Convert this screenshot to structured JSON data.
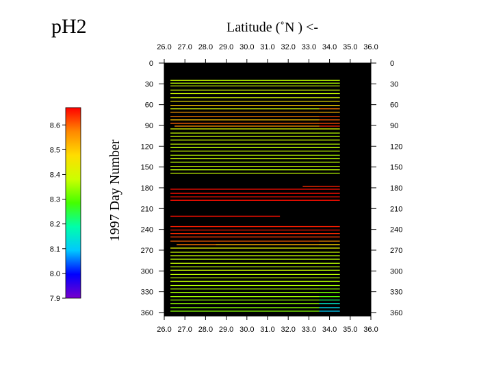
{
  "chart_data": {
    "type": "heatmap",
    "title": "pH2",
    "xlabel": "Latitude  (˚N )  <-",
    "ylabel": "1997   Day  Number",
    "x_ticks": [
      "26.0",
      "27.0",
      "28.0",
      "29.0",
      "30.0",
      "31.0",
      "32.0",
      "33.0",
      "34.0",
      "35.0",
      "36.0"
    ],
    "y_ticks": [
      "0",
      "30",
      "60",
      "90",
      "120",
      "150",
      "180",
      "210",
      "240",
      "270",
      "300",
      "330",
      "360"
    ],
    "xlim": [
      26.0,
      36.0
    ],
    "ylim": [
      0,
      365
    ],
    "y_reversed": true,
    "background": "#000000",
    "colorbar": {
      "ticks": [
        "8.6",
        "8.5",
        "8.4",
        "8.3",
        "8.2",
        "8.1",
        "8.0",
        "7.9"
      ],
      "min": 7.9,
      "max": 8.67,
      "colors": [
        "#7700cc",
        "#0000ff",
        "#00c8ff",
        "#00ffaa",
        "#44ff00",
        "#ccff00",
        "#ffdd00",
        "#ff8800",
        "#ff0000"
      ]
    },
    "tracks": [
      {
        "day": 25,
        "segments": [
          [
            26.3,
            28.5,
            8.38
          ],
          [
            28.5,
            33.5,
            8.37
          ],
          [
            33.5,
            34.5,
            8.37
          ]
        ]
      },
      {
        "day": 29,
        "segments": [
          [
            26.3,
            28.5,
            8.37
          ],
          [
            28.5,
            33.5,
            8.37
          ],
          [
            33.5,
            34.5,
            8.36
          ]
        ]
      },
      {
        "day": 33,
        "segments": [
          [
            26.3,
            28.5,
            8.38
          ],
          [
            28.5,
            33.5,
            8.38
          ],
          [
            33.5,
            34.5,
            8.37
          ]
        ]
      },
      {
        "day": 39,
        "segments": [
          [
            26.3,
            28.5,
            8.39
          ],
          [
            28.5,
            33.5,
            8.39
          ],
          [
            33.5,
            34.5,
            8.38
          ]
        ]
      },
      {
        "day": 44,
        "segments": [
          [
            26.3,
            28.5,
            8.39
          ],
          [
            28.5,
            33.5,
            8.39
          ],
          [
            33.5,
            34.5,
            8.38
          ]
        ]
      },
      {
        "day": 50,
        "segments": [
          [
            26.3,
            28.5,
            8.4
          ],
          [
            28.5,
            33.5,
            8.4
          ],
          [
            33.5,
            34.5,
            8.4
          ]
        ]
      },
      {
        "day": 55,
        "segments": [
          [
            26.3,
            28.5,
            8.45
          ],
          [
            28.5,
            33.5,
            8.46
          ],
          [
            33.5,
            34.5,
            8.45
          ]
        ]
      },
      {
        "day": 61,
        "segments": [
          [
            26.3,
            28.5,
            8.5
          ],
          [
            28.5,
            33.5,
            8.5
          ],
          [
            33.5,
            34.5,
            8.48
          ]
        ]
      },
      {
        "day": 66,
        "segments": [
          [
            26.3,
            28.5,
            8.4
          ],
          [
            28.5,
            33.5,
            8.4
          ],
          [
            33.5,
            34.5,
            8.58
          ]
        ]
      },
      {
        "day": 71,
        "segments": [
          [
            26.3,
            28.5,
            8.55
          ],
          [
            28.5,
            33.5,
            8.55
          ],
          [
            33.5,
            34.5,
            8.52
          ]
        ]
      },
      {
        "day": 77,
        "segments": [
          [
            26.3,
            28.5,
            8.58
          ],
          [
            28.5,
            33.5,
            8.58
          ],
          [
            33.5,
            34.5,
            8.62
          ]
        ]
      },
      {
        "day": 82,
        "segments": [
          [
            26.3,
            28.5,
            8.5
          ],
          [
            28.5,
            33.5,
            8.5
          ],
          [
            33.5,
            34.5,
            8.6
          ]
        ]
      },
      {
        "day": 87,
        "segments": [
          [
            26.3,
            28.5,
            8.6
          ],
          [
            28.5,
            33.5,
            8.6
          ],
          [
            33.5,
            34.5,
            8.62
          ]
        ]
      },
      {
        "day": 91,
        "segments": [
          [
            26.5,
            28.5,
            8.55
          ],
          [
            28.5,
            33.5,
            8.55
          ],
          [
            33.5,
            34.5,
            8.64
          ]
        ]
      },
      {
        "day": 95,
        "segments": [
          [
            26.3,
            28.5,
            8.4
          ],
          [
            28.5,
            33.5,
            8.4
          ],
          [
            33.5,
            34.5,
            8.4
          ]
        ]
      },
      {
        "day": 101,
        "segments": [
          [
            26.3,
            28.5,
            8.38
          ],
          [
            28.5,
            33.5,
            8.38
          ],
          [
            33.5,
            34.5,
            8.37
          ]
        ]
      },
      {
        "day": 106,
        "segments": [
          [
            26.3,
            28.5,
            8.38
          ],
          [
            28.5,
            33.5,
            8.38
          ],
          [
            33.5,
            34.5,
            8.37
          ]
        ]
      },
      {
        "day": 111,
        "segments": [
          [
            26.3,
            28.5,
            8.38
          ],
          [
            28.5,
            33.5,
            8.38
          ],
          [
            33.5,
            34.5,
            8.38
          ]
        ]
      },
      {
        "day": 117,
        "segments": [
          [
            26.3,
            28.5,
            8.38
          ],
          [
            28.5,
            33.5,
            8.38
          ],
          [
            33.5,
            34.5,
            8.37
          ]
        ]
      },
      {
        "day": 122,
        "segments": [
          [
            26.3,
            28.5,
            8.37
          ],
          [
            28.5,
            33.5,
            8.37
          ],
          [
            33.5,
            34.5,
            8.37
          ]
        ]
      },
      {
        "day": 127,
        "segments": [
          [
            26.3,
            28.5,
            8.38
          ],
          [
            28.5,
            33.5,
            8.38
          ],
          [
            33.5,
            34.5,
            8.37
          ]
        ]
      },
      {
        "day": 133,
        "segments": [
          [
            26.3,
            28.5,
            8.37
          ],
          [
            28.5,
            33.5,
            8.37
          ],
          [
            33.5,
            34.5,
            8.36
          ]
        ]
      },
      {
        "day": 138,
        "segments": [
          [
            26.3,
            28.5,
            8.38
          ],
          [
            28.5,
            33.5,
            8.38
          ],
          [
            33.5,
            34.5,
            8.37
          ]
        ]
      },
      {
        "day": 143,
        "segments": [
          [
            26.3,
            28.5,
            8.37
          ],
          [
            28.5,
            33.5,
            8.37
          ],
          [
            33.5,
            34.5,
            8.37
          ]
        ]
      },
      {
        "day": 149,
        "segments": [
          [
            26.3,
            28.5,
            8.38
          ],
          [
            28.5,
            33.5,
            8.38
          ],
          [
            33.5,
            34.5,
            8.37
          ]
        ]
      },
      {
        "day": 154,
        "segments": [
          [
            26.3,
            28.5,
            8.37
          ],
          [
            28.5,
            33.5,
            8.37
          ],
          [
            33.5,
            34.5,
            8.37
          ]
        ]
      },
      {
        "day": 159,
        "segments": [
          [
            26.3,
            28.5,
            8.38
          ],
          [
            28.5,
            33.5,
            8.38
          ],
          [
            33.5,
            34.5,
            8.37
          ]
        ]
      },
      {
        "day": 178,
        "segments": [
          [
            32.7,
            33.5,
            8.64
          ],
          [
            33.5,
            34.5,
            8.65
          ]
        ]
      },
      {
        "day": 182,
        "segments": [
          [
            26.3,
            28.5,
            8.66
          ],
          [
            28.5,
            33.5,
            8.66
          ],
          [
            33.5,
            34.5,
            8.66
          ]
        ]
      },
      {
        "day": 188,
        "segments": [
          [
            26.3,
            28.5,
            8.66
          ],
          [
            28.5,
            33.5,
            8.66
          ],
          [
            33.5,
            34.5,
            8.66
          ]
        ]
      },
      {
        "day": 193,
        "segments": [
          [
            26.3,
            28.5,
            8.66
          ],
          [
            28.5,
            33.5,
            8.66
          ],
          [
            33.5,
            34.5,
            8.66
          ]
        ]
      },
      {
        "day": 198,
        "segments": [
          [
            26.3,
            28.5,
            8.66
          ],
          [
            28.5,
            33.5,
            8.66
          ],
          [
            33.5,
            34.5,
            8.66
          ]
        ]
      },
      {
        "day": 221,
        "segments": [
          [
            26.3,
            28.5,
            8.66
          ],
          [
            28.5,
            31.6,
            8.66
          ]
        ]
      },
      {
        "day": 236,
        "segments": [
          [
            26.3,
            28.5,
            8.65
          ],
          [
            28.5,
            33.5,
            8.65
          ],
          [
            33.5,
            34.5,
            8.65
          ]
        ]
      },
      {
        "day": 241,
        "segments": [
          [
            26.3,
            28.5,
            8.65
          ],
          [
            28.5,
            33.5,
            8.65
          ],
          [
            33.5,
            34.5,
            8.66
          ]
        ]
      },
      {
        "day": 246,
        "segments": [
          [
            26.3,
            28.5,
            8.64
          ],
          [
            28.5,
            33.5,
            8.64
          ],
          [
            33.5,
            34.5,
            8.64
          ]
        ]
      },
      {
        "day": 251,
        "segments": [
          [
            26.3,
            28.5,
            8.63
          ],
          [
            28.5,
            33.5,
            8.63
          ],
          [
            33.5,
            34.5,
            8.63
          ]
        ]
      },
      {
        "day": 257,
        "segments": [
          [
            26.3,
            28.5,
            8.6
          ],
          [
            28.5,
            33.5,
            8.6
          ],
          [
            33.5,
            34.5,
            8.56
          ]
        ]
      },
      {
        "day": 262,
        "segments": [
          [
            26.6,
            28.5,
            8.58
          ],
          [
            28.5,
            33.5,
            8.52
          ],
          [
            33.5,
            34.5,
            8.48
          ]
        ]
      },
      {
        "day": 267,
        "segments": [
          [
            26.3,
            28.5,
            8.42
          ],
          [
            28.5,
            33.5,
            8.42
          ],
          [
            33.5,
            34.5,
            8.42
          ]
        ]
      },
      {
        "day": 273,
        "segments": [
          [
            26.3,
            28.5,
            8.38
          ],
          [
            28.5,
            33.5,
            8.38
          ],
          [
            33.5,
            34.5,
            8.38
          ]
        ]
      },
      {
        "day": 278,
        "segments": [
          [
            26.3,
            28.5,
            8.38
          ],
          [
            28.5,
            33.5,
            8.38
          ],
          [
            33.5,
            34.5,
            8.37
          ]
        ]
      },
      {
        "day": 283,
        "segments": [
          [
            26.3,
            28.5,
            8.37
          ],
          [
            28.5,
            33.5,
            8.37
          ],
          [
            33.5,
            34.5,
            8.37
          ]
        ]
      },
      {
        "day": 289,
        "segments": [
          [
            26.3,
            28.5,
            8.38
          ],
          [
            28.5,
            33.5,
            8.38
          ],
          [
            33.5,
            34.5,
            8.37
          ]
        ]
      },
      {
        "day": 294,
        "segments": [
          [
            26.3,
            28.5,
            8.37
          ],
          [
            28.5,
            33.5,
            8.37
          ],
          [
            33.5,
            34.5,
            8.37
          ]
        ]
      },
      {
        "day": 299,
        "segments": [
          [
            26.3,
            28.5,
            8.38
          ],
          [
            28.5,
            33.5,
            8.38
          ],
          [
            33.5,
            34.5,
            8.37
          ]
        ]
      },
      {
        "day": 305,
        "segments": [
          [
            26.3,
            28.5,
            8.37
          ],
          [
            28.5,
            33.5,
            8.37
          ],
          [
            33.5,
            34.5,
            8.37
          ]
        ]
      },
      {
        "day": 310,
        "segments": [
          [
            26.3,
            28.5,
            8.37
          ],
          [
            28.5,
            33.5,
            8.37
          ],
          [
            33.5,
            34.5,
            8.36
          ]
        ]
      },
      {
        "day": 315,
        "segments": [
          [
            26.3,
            28.5,
            8.37
          ],
          [
            28.5,
            33.5,
            8.37
          ],
          [
            33.5,
            34.5,
            8.36
          ]
        ]
      },
      {
        "day": 321,
        "segments": [
          [
            26.3,
            28.5,
            8.36
          ],
          [
            28.5,
            33.5,
            8.36
          ],
          [
            33.5,
            34.5,
            8.35
          ]
        ]
      },
      {
        "day": 326,
        "segments": [
          [
            26.3,
            28.5,
            8.36
          ],
          [
            28.5,
            33.5,
            8.36
          ],
          [
            33.5,
            34.5,
            8.34
          ]
        ]
      },
      {
        "day": 331,
        "segments": [
          [
            26.3,
            28.5,
            8.35
          ],
          [
            28.5,
            33.5,
            8.35
          ],
          [
            33.5,
            34.5,
            8.32
          ]
        ]
      },
      {
        "day": 337,
        "segments": [
          [
            26.3,
            28.5,
            8.35
          ],
          [
            28.5,
            33.5,
            8.35
          ],
          [
            33.5,
            34.5,
            8.3
          ]
        ]
      },
      {
        "day": 342,
        "segments": [
          [
            26.3,
            28.5,
            8.34
          ],
          [
            28.5,
            33.5,
            8.34
          ],
          [
            33.5,
            34.5,
            8.22
          ]
        ]
      },
      {
        "day": 347,
        "segments": [
          [
            26.3,
            28.5,
            8.34
          ],
          [
            28.5,
            33.5,
            8.34
          ],
          [
            33.5,
            34.5,
            8.15
          ]
        ]
      },
      {
        "day": 353,
        "segments": [
          [
            26.3,
            28.5,
            8.33
          ],
          [
            28.5,
            33.5,
            8.33
          ],
          [
            33.5,
            34.5,
            8.12
          ]
        ]
      },
      {
        "day": 358,
        "segments": [
          [
            26.3,
            28.5,
            8.33
          ],
          [
            28.5,
            33.5,
            8.33
          ],
          [
            33.5,
            34.5,
            8.1
          ]
        ]
      }
    ]
  }
}
